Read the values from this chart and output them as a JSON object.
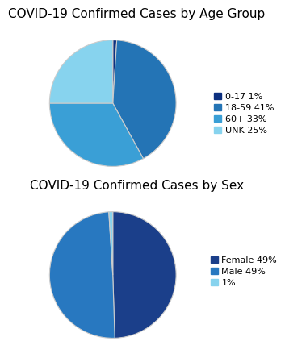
{
  "chart1_title": "COVID-19 Confirmed Cases by Age Group",
  "chart1_labels": [
    "0-17 1%",
    "18-59 41%",
    "60+ 33%",
    "UNK 25%"
  ],
  "chart1_values": [
    1,
    41,
    33,
    25
  ],
  "chart1_colors": [
    "#0d3080",
    "#2474b5",
    "#3a9fd6",
    "#87d3ee"
  ],
  "chart1_startangle": 90,
  "chart2_title": "COVID-19 Confirmed Cases by Sex",
  "chart2_labels": [
    "Female 49%",
    "Male 49%",
    "1%"
  ],
  "chart2_values": [
    49,
    49,
    1
  ],
  "chart2_colors": [
    "#1b3f8a",
    "#2878c0",
    "#87d3ee"
  ],
  "chart2_startangle": 90,
  "bg_color": "#ffffff",
  "title_fontsize": 11,
  "legend_fontsize": 8
}
